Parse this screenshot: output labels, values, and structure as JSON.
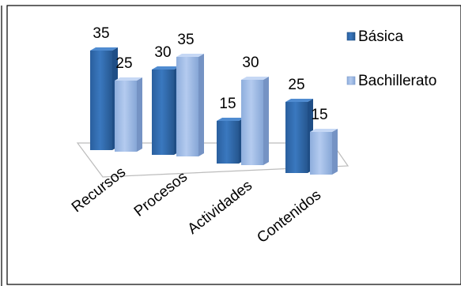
{
  "chart_data": {
    "type": "bar",
    "categories": [
      "Recursos",
      "Procesos",
      "Actividades",
      "Contenidos"
    ],
    "series": [
      {
        "name": "Básica",
        "values": [
          35,
          30,
          15,
          25
        ],
        "color": "#2f6aad"
      },
      {
        "name": "Bachillerato",
        "values": [
          25,
          35,
          30,
          15
        ],
        "color": "#9db9e4"
      }
    ],
    "value_labels": [
      [
        "35",
        "30",
        "15",
        "25"
      ],
      [
        "25",
        "35",
        "30",
        "15"
      ]
    ],
    "title": "",
    "xlabel": "",
    "ylabel": "",
    "ylim": [
      0,
      40
    ],
    "grid": false,
    "legend": "right",
    "style": "3d-clustered"
  }
}
